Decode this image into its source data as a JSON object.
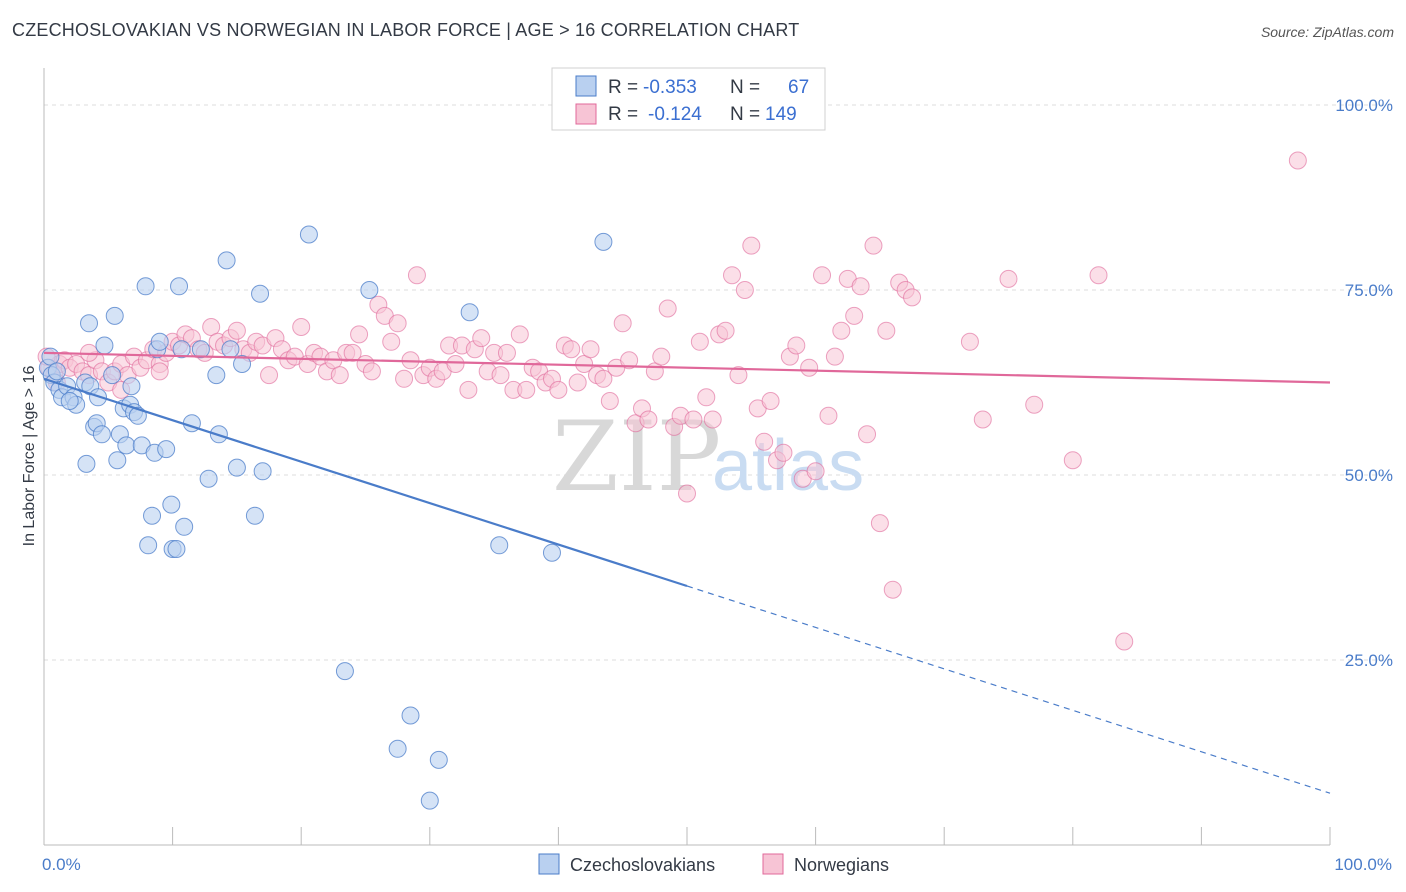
{
  "title": "CZECHOSLOVAKIAN VS NORWEGIAN IN LABOR FORCE | AGE > 16 CORRELATION CHART",
  "source": "Source: ZipAtlas.com",
  "watermark": {
    "zip": "ZIP",
    "atlas": "atlas"
  },
  "colors": {
    "blue": "#4a7cc9",
    "blue_fill": "#b9d0f0",
    "pink": "#e0689a",
    "pink_fill": "#f7c4d5",
    "grid": "#dcdcdc"
  },
  "legend": {
    "rows": [
      {
        "r_label": "R =",
        "r_value": "-0.353",
        "n_label": "N =",
        "n_value": "67"
      },
      {
        "r_label": "R =",
        "r_value": "-0.124",
        "n_label": "N =",
        "n_value": "149"
      }
    ]
  },
  "bottom_legend": [
    "Czechoslovakians",
    "Norwegians"
  ],
  "chart_data": {
    "type": "scatter",
    "ylabel": "In Labor Force | Age > 16",
    "xlim": [
      0,
      100
    ],
    "ylim": [
      0,
      105
    ],
    "x_tick_labels": [
      "0.0%",
      "100.0%"
    ],
    "y_ticks": [
      25,
      50,
      75,
      100
    ],
    "y_tick_labels": [
      "25.0%",
      "50.0%",
      "75.0%",
      "100.0%"
    ],
    "grid": "horizontal dashed",
    "legend_placement": "top-center",
    "series": [
      {
        "name": "Czechoslovakians",
        "R": -0.353,
        "N": 67,
        "trend": {
          "x0": 0,
          "y0": 63.0,
          "x1": 100,
          "y1": 7.0,
          "solid_until_x": 50
        },
        "points": [
          [
            0.3,
            64.5
          ],
          [
            0.6,
            63.5
          ],
          [
            0.8,
            62.5
          ],
          [
            1.2,
            61.5
          ],
          [
            1.4,
            60.5
          ],
          [
            1.8,
            62.0
          ],
          [
            2.3,
            60.5
          ],
          [
            2.5,
            59.5
          ],
          [
            3.2,
            62.5
          ],
          [
            3.3,
            51.5
          ],
          [
            3.6,
            62.0
          ],
          [
            3.5,
            70.5
          ],
          [
            3.9,
            56.5
          ],
          [
            4.1,
            57.0
          ],
          [
            4.2,
            60.5
          ],
          [
            4.5,
            55.5
          ],
          [
            4.7,
            67.5
          ],
          [
            5.3,
            63.5
          ],
          [
            5.5,
            71.5
          ],
          [
            5.7,
            52.0
          ],
          [
            5.9,
            55.5
          ],
          [
            6.2,
            59.0
          ],
          [
            6.4,
            54.0
          ],
          [
            6.7,
            59.5
          ],
          [
            6.8,
            62.0
          ],
          [
            7.0,
            58.5
          ],
          [
            7.3,
            58.0
          ],
          [
            7.6,
            54.0
          ],
          [
            7.9,
            75.5
          ],
          [
            8.1,
            40.5
          ],
          [
            8.4,
            44.5
          ],
          [
            8.6,
            53.0
          ],
          [
            8.8,
            67.0
          ],
          [
            9.0,
            68.0
          ],
          [
            9.5,
            53.5
          ],
          [
            9.9,
            46.0
          ],
          [
            10.0,
            40.0
          ],
          [
            10.3,
            40.0
          ],
          [
            10.5,
            75.5
          ],
          [
            10.7,
            67.0
          ],
          [
            10.9,
            43.0
          ],
          [
            11.5,
            57.0
          ],
          [
            12.2,
            67.0
          ],
          [
            12.8,
            49.5
          ],
          [
            13.4,
            63.5
          ],
          [
            13.6,
            55.5
          ],
          [
            14.2,
            79.0
          ],
          [
            14.5,
            67.0
          ],
          [
            15.0,
            51.0
          ],
          [
            15.4,
            65.0
          ],
          [
            16.4,
            44.5
          ],
          [
            16.8,
            74.5
          ],
          [
            17.0,
            50.5
          ],
          [
            20.6,
            82.5
          ],
          [
            23.4,
            23.5
          ],
          [
            25.3,
            75.0
          ],
          [
            28.5,
            17.5
          ],
          [
            27.5,
            13.0
          ],
          [
            30.0,
            6.0
          ],
          [
            30.7,
            11.5
          ],
          [
            33.1,
            72.0
          ],
          [
            35.4,
            40.5
          ],
          [
            39.5,
            39.5
          ],
          [
            43.5,
            81.5
          ],
          [
            0.5,
            66.0
          ],
          [
            1.0,
            64.0
          ],
          [
            2.0,
            60.0
          ]
        ]
      },
      {
        "name": "Norwegians",
        "R": -0.124,
        "N": 149,
        "trend": {
          "x0": 0,
          "y0": 66.5,
          "x1": 100,
          "y1": 62.5
        },
        "points": [
          [
            0.4,
            64.5
          ],
          [
            0.8,
            63.5
          ],
          [
            1.2,
            65.0
          ],
          [
            1.6,
            65.5
          ],
          [
            2.0,
            64.5
          ],
          [
            2.5,
            65.0
          ],
          [
            3.0,
            64.0
          ],
          [
            3.5,
            63.5
          ],
          [
            4.0,
            65.5
          ],
          [
            4.5,
            64.0
          ],
          [
            5.0,
            62.5
          ],
          [
            5.5,
            64.0
          ],
          [
            6.0,
            65.0
          ],
          [
            6.5,
            63.5
          ],
          [
            7.0,
            66.0
          ],
          [
            7.5,
            64.5
          ],
          [
            8.0,
            65.5
          ],
          [
            8.5,
            67.0
          ],
          [
            9.0,
            65.0
          ],
          [
            9.5,
            66.5
          ],
          [
            10.0,
            68.0
          ],
          [
            10.5,
            67.5
          ],
          [
            11.0,
            69.0
          ],
          [
            11.5,
            68.5
          ],
          [
            12.0,
            67.0
          ],
          [
            12.5,
            66.5
          ],
          [
            13.0,
            70.0
          ],
          [
            13.5,
            68.0
          ],
          [
            14.0,
            67.5
          ],
          [
            14.5,
            68.5
          ],
          [
            15.0,
            69.5
          ],
          [
            15.5,
            67.0
          ],
          [
            16.0,
            66.5
          ],
          [
            16.5,
            68.0
          ],
          [
            17.0,
            67.5
          ],
          [
            17.5,
            63.5
          ],
          [
            18.0,
            68.5
          ],
          [
            18.5,
            67.0
          ],
          [
            19.0,
            65.5
          ],
          [
            19.5,
            66.0
          ],
          [
            20.0,
            70.0
          ],
          [
            20.5,
            65.0
          ],
          [
            21.0,
            66.5
          ],
          [
            21.5,
            66.0
          ],
          [
            22.0,
            64.0
          ],
          [
            22.5,
            65.5
          ],
          [
            23.0,
            63.5
          ],
          [
            23.5,
            66.5
          ],
          [
            24.0,
            66.5
          ],
          [
            24.5,
            69.0
          ],
          [
            25.0,
            65.0
          ],
          [
            25.5,
            64.0
          ],
          [
            26.0,
            73.0
          ],
          [
            26.5,
            71.5
          ],
          [
            27.0,
            68.0
          ],
          [
            27.5,
            70.5
          ],
          [
            28.0,
            63.0
          ],
          [
            28.5,
            65.5
          ],
          [
            29.0,
            77.0
          ],
          [
            29.5,
            63.5
          ],
          [
            30.0,
            64.5
          ],
          [
            30.5,
            63.0
          ],
          [
            31.0,
            64.0
          ],
          [
            31.5,
            67.5
          ],
          [
            32.0,
            65.0
          ],
          [
            32.5,
            67.5
          ],
          [
            33.0,
            61.5
          ],
          [
            33.5,
            67.0
          ],
          [
            34.0,
            68.5
          ],
          [
            34.5,
            64.0
          ],
          [
            35.0,
            66.5
          ],
          [
            35.5,
            63.5
          ],
          [
            36.0,
            66.5
          ],
          [
            36.5,
            61.5
          ],
          [
            37.0,
            69.0
          ],
          [
            37.5,
            61.5
          ],
          [
            38.0,
            64.5
          ],
          [
            38.5,
            64.0
          ],
          [
            39.0,
            62.5
          ],
          [
            39.5,
            63.0
          ],
          [
            40.0,
            61.5
          ],
          [
            40.5,
            67.5
          ],
          [
            41.0,
            67.0
          ],
          [
            41.5,
            62.5
          ],
          [
            42.0,
            65.0
          ],
          [
            42.5,
            67.0
          ],
          [
            43.0,
            63.5
          ],
          [
            43.5,
            63.0
          ],
          [
            44.0,
            60.0
          ],
          [
            44.5,
            64.5
          ],
          [
            45.0,
            70.5
          ],
          [
            45.5,
            65.5
          ],
          [
            46.0,
            57.0
          ],
          [
            46.5,
            59.0
          ],
          [
            47.0,
            57.5
          ],
          [
            47.5,
            64.0
          ],
          [
            48.0,
            66.0
          ],
          [
            48.5,
            72.5
          ],
          [
            49.0,
            56.5
          ],
          [
            49.5,
            58.0
          ],
          [
            50.0,
            47.5
          ],
          [
            50.5,
            57.5
          ],
          [
            51.0,
            68.0
          ],
          [
            51.5,
            60.5
          ],
          [
            52.0,
            57.5
          ],
          [
            52.5,
            69.0
          ],
          [
            53.0,
            69.5
          ],
          [
            53.5,
            77.0
          ],
          [
            54.0,
            63.5
          ],
          [
            54.5,
            75.0
          ],
          [
            55.0,
            81.0
          ],
          [
            55.5,
            59.0
          ],
          [
            56.0,
            54.5
          ],
          [
            56.5,
            60.0
          ],
          [
            57.0,
            52.0
          ],
          [
            57.5,
            53.0
          ],
          [
            58.0,
            66.0
          ],
          [
            58.5,
            67.5
          ],
          [
            59.0,
            49.5
          ],
          [
            59.5,
            64.5
          ],
          [
            60.0,
            50.5
          ],
          [
            60.5,
            77.0
          ],
          [
            61.0,
            58.0
          ],
          [
            61.5,
            66.0
          ],
          [
            62.0,
            69.5
          ],
          [
            62.5,
            76.5
          ],
          [
            63.0,
            71.5
          ],
          [
            63.5,
            75.5
          ],
          [
            64.0,
            55.5
          ],
          [
            64.5,
            81.0
          ],
          [
            65.0,
            43.5
          ],
          [
            65.5,
            69.5
          ],
          [
            66.0,
            34.5
          ],
          [
            66.5,
            76.0
          ],
          [
            67.0,
            75.0
          ],
          [
            67.5,
            74.0
          ],
          [
            72.0,
            68.0
          ],
          [
            73.0,
            57.5
          ],
          [
            75.0,
            76.5
          ],
          [
            77.0,
            59.5
          ],
          [
            80.0,
            52.0
          ],
          [
            82.0,
            77.0
          ],
          [
            84.0,
            27.5
          ],
          [
            97.5,
            92.5
          ],
          [
            0.2,
            66.0
          ],
          [
            1.0,
            62.5
          ],
          [
            3.5,
            66.5
          ],
          [
            6.0,
            61.5
          ],
          [
            9.0,
            64.0
          ]
        ]
      }
    ]
  }
}
